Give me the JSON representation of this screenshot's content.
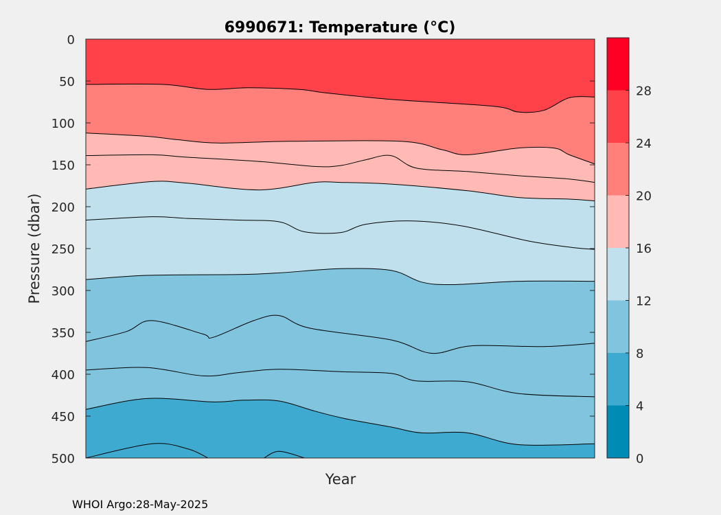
{
  "chart_data": {
    "type": "contour",
    "title": "6990671:  Temperature (°C)",
    "xlabel": "Year",
    "ylabel": "Pressure (dbar)",
    "ylim": [
      0,
      500
    ],
    "y_reversed": true,
    "y_ticks": [
      0,
      50,
      100,
      150,
      200,
      250,
      300,
      350,
      400,
      450,
      500
    ],
    "x_domain": [
      0,
      1
    ],
    "colorbar": {
      "levels": [
        0,
        4,
        8,
        12,
        16,
        20,
        24,
        28,
        32
      ],
      "tick_labels": [
        "0",
        "4",
        "8",
        "12",
        "16",
        "20",
        "24",
        "28"
      ],
      "colors": [
        "#008BB5",
        "#3FAACF",
        "#80C4DD",
        "#BFE0EC",
        "#FFBAB5",
        "#FF807A",
        "#FF424A",
        "#FF0025"
      ]
    },
    "contours": [
      {
        "fill": "#FF424A",
        "boundary": [
          [
            0.0,
            0
          ]
        ]
      },
      {
        "fill": "#FF807A",
        "boundary": [
          [
            0.0,
            54
          ],
          [
            0.15,
            54
          ],
          [
            0.24,
            60
          ],
          [
            0.32,
            58
          ],
          [
            0.42,
            60
          ],
          [
            0.47,
            64
          ],
          [
            0.6,
            72
          ],
          [
            0.8,
            80
          ],
          [
            0.85,
            87
          ],
          [
            0.9,
            85
          ],
          [
            0.95,
            70
          ],
          [
            1.0,
            69
          ]
        ]
      },
      {
        "fill": "#FFBAB5",
        "boundary": [
          [
            0.0,
            112
          ],
          [
            0.12,
            116
          ],
          [
            0.18,
            120
          ],
          [
            0.26,
            124
          ],
          [
            0.4,
            122
          ],
          [
            0.62,
            122
          ],
          [
            0.7,
            132
          ],
          [
            0.75,
            138
          ],
          [
            0.85,
            130
          ],
          [
            0.92,
            130
          ],
          [
            0.95,
            138
          ],
          [
            1.0,
            149
          ]
        ]
      },
      {
        "fill": "#FFBAB5",
        "boundary": [
          [
            0.0,
            139
          ],
          [
            0.13,
            138
          ],
          [
            0.2,
            141
          ],
          [
            0.34,
            146
          ],
          [
            0.45,
            152
          ],
          [
            0.5,
            151
          ],
          [
            0.55,
            144
          ],
          [
            0.6,
            139
          ],
          [
            0.65,
            154
          ],
          [
            0.75,
            158
          ],
          [
            0.85,
            163
          ],
          [
            0.95,
            167
          ],
          [
            1.0,
            171
          ]
        ]
      },
      {
        "fill": "#BFE0EC",
        "boundary": [
          [
            0.0,
            179
          ],
          [
            0.13,
            170
          ],
          [
            0.2,
            172
          ],
          [
            0.34,
            180
          ],
          [
            0.45,
            171
          ],
          [
            0.5,
            171
          ],
          [
            0.6,
            173
          ],
          [
            0.75,
            181
          ],
          [
            0.85,
            189
          ],
          [
            0.95,
            191
          ],
          [
            1.0,
            193
          ]
        ]
      },
      {
        "fill": "#BFE0EC",
        "boundary": [
          [
            0.0,
            216
          ],
          [
            0.13,
            212
          ],
          [
            0.2,
            214
          ],
          [
            0.3,
            216
          ],
          [
            0.38,
            218
          ],
          [
            0.43,
            230
          ],
          [
            0.5,
            231
          ],
          [
            0.55,
            221
          ],
          [
            0.64,
            217
          ],
          [
            0.74,
            223
          ],
          [
            0.87,
            241
          ],
          [
            0.96,
            249
          ],
          [
            1.0,
            251
          ]
        ]
      },
      {
        "fill": "#80C4DD",
        "boundary": [
          [
            0.0,
            287
          ],
          [
            0.12,
            282
          ],
          [
            0.3,
            281
          ],
          [
            0.38,
            279
          ],
          [
            0.5,
            274
          ],
          [
            0.6,
            276
          ],
          [
            0.66,
            290
          ],
          [
            0.72,
            293
          ],
          [
            0.85,
            289
          ],
          [
            1.0,
            289
          ]
        ]
      },
      {
        "fill": "#80C4DD",
        "boundary": [
          [
            0.0,
            361
          ],
          [
            0.08,
            349
          ],
          [
            0.13,
            336
          ],
          [
            0.23,
            352
          ],
          [
            0.25,
            356
          ],
          [
            0.33,
            336
          ],
          [
            0.38,
            330
          ],
          [
            0.44,
            345
          ],
          [
            0.6,
            359
          ],
          [
            0.68,
            375
          ],
          [
            0.76,
            366
          ],
          [
            0.9,
            367
          ],
          [
            1.0,
            363
          ]
        ]
      },
      {
        "fill": "#80C4DD",
        "boundary": [
          [
            0.0,
            395
          ],
          [
            0.12,
            392
          ],
          [
            0.23,
            402
          ],
          [
            0.3,
            398
          ],
          [
            0.38,
            394
          ],
          [
            0.5,
            397
          ],
          [
            0.6,
            399
          ],
          [
            0.65,
            408
          ],
          [
            0.75,
            409
          ],
          [
            0.85,
            423
          ],
          [
            1.0,
            427
          ]
        ]
      },
      {
        "fill": "#3FAACF",
        "boundary": [
          [
            0.0,
            442
          ],
          [
            0.12,
            429
          ],
          [
            0.25,
            433
          ],
          [
            0.31,
            431
          ],
          [
            0.38,
            432
          ],
          [
            0.45,
            444
          ],
          [
            0.51,
            453
          ],
          [
            0.6,
            463
          ],
          [
            0.66,
            470
          ],
          [
            0.75,
            470
          ],
          [
            0.85,
            484
          ],
          [
            1.0,
            483
          ]
        ]
      }
    ],
    "extra_lines": [
      [
        [
          0.0,
          500
        ],
        [
          0.13,
          483
        ],
        [
          0.2,
          489
        ],
        [
          0.24,
          500
        ]
      ],
      [
        [
          0.35,
          500
        ],
        [
          0.38,
          492
        ],
        [
          0.43,
          500
        ]
      ]
    ]
  },
  "footer": "WHOI Argo:28-May-2025"
}
